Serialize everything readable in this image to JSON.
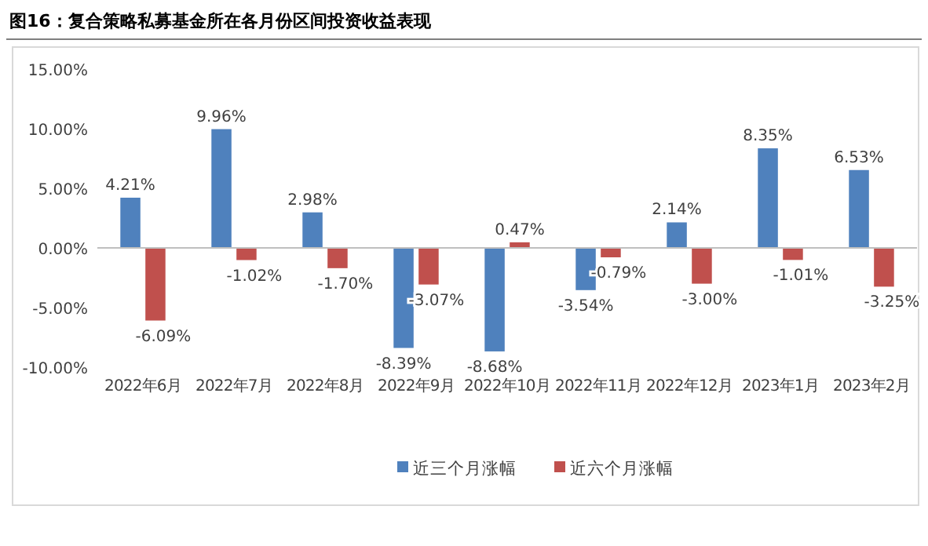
{
  "chart_data": {
    "type": "bar",
    "title": "图16：复合策略私募基金所在各月份区间投资收益表现",
    "categories": [
      "2022年6月",
      "2022年7月",
      "2022年8月",
      "2022年9月",
      "2022年10月",
      "2022年11月",
      "2022年12月",
      "2023年1月",
      "2023年2月"
    ],
    "series": [
      {
        "name": "近三个月涨幅",
        "color": "#4f81bd",
        "values": [
          4.21,
          9.96,
          2.98,
          -8.39,
          -8.68,
          -3.54,
          2.14,
          8.35,
          6.53
        ],
        "value_labels": [
          "4.21%",
          "9.96%",
          "2.98%",
          "-8.39%",
          "-8.68%",
          "-3.54%",
          "2.14%",
          "8.35%",
          "6.53%"
        ]
      },
      {
        "name": "近六个月涨幅",
        "color": "#c0504d",
        "values": [
          -6.09,
          -1.02,
          -1.7,
          -3.07,
          0.47,
          -0.79,
          -3.0,
          -1.01,
          -3.25
        ],
        "value_labels": [
          "-6.09%",
          "-1.02%",
          "-1.70%",
          "-3.07%",
          "0.47%",
          "-0.79%",
          "-3.00%",
          "-1.01%",
          "-3.25%"
        ]
      }
    ],
    "ylim": [
      -10,
      15
    ],
    "yticks": [
      {
        "value": -10,
        "label": "-10.00%"
      },
      {
        "value": -5,
        "label": "-5.00%"
      },
      {
        "value": 0,
        "label": "0.00%"
      },
      {
        "value": 5,
        "label": "5.00%"
      },
      {
        "value": 10,
        "label": "10.00%"
      },
      {
        "value": 15,
        "label": "15.00%"
      }
    ],
    "legend": "bottom"
  }
}
